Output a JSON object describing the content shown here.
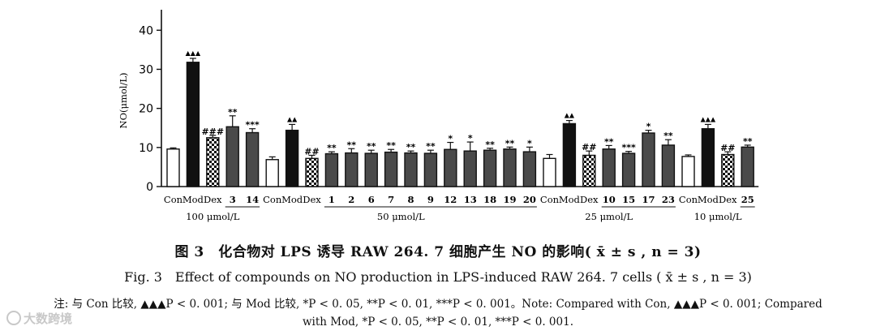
{
  "chart_data": {
    "type": "bar",
    "ylabel": "NO(μmol/L)",
    "ylim": [
      0,
      44
    ],
    "yticks": [
      0,
      10,
      20,
      30,
      40
    ],
    "grid": false,
    "groups": [
      {
        "label": "100 μmol/L",
        "bars": [
          {
            "category": "Con",
            "value": 9.6,
            "err": 0.3,
            "sig": "",
            "style": "white"
          },
          {
            "category": "Mod",
            "value": 31.8,
            "err": 1.0,
            "sig": "▲▲▲",
            "style": "black"
          },
          {
            "category": "Dex",
            "value": 12.5,
            "err": 0.6,
            "sig": "###",
            "style": "checker"
          },
          {
            "category": "3",
            "value": 15.3,
            "err": 2.8,
            "sig": "**",
            "style": "gray"
          },
          {
            "category": "14",
            "value": 13.8,
            "err": 1.0,
            "sig": "***",
            "style": "gray"
          }
        ]
      },
      {
        "label": "50 μmol/L",
        "bars": [
          {
            "category": "Con",
            "value": 6.9,
            "err": 0.7,
            "sig": "",
            "style": "white"
          },
          {
            "category": "Mod",
            "value": 14.4,
            "err": 1.5,
            "sig": "▲▲",
            "style": "black"
          },
          {
            "category": "Dex",
            "value": 7.2,
            "err": 0.8,
            "sig": "##",
            "style": "checker"
          },
          {
            "category": "1",
            "value": 8.4,
            "err": 0.5,
            "sig": "**",
            "style": "gray"
          },
          {
            "category": "2",
            "value": 8.6,
            "err": 1.1,
            "sig": "**",
            "style": "gray"
          },
          {
            "category": "6",
            "value": 8.5,
            "err": 0.8,
            "sig": "**",
            "style": "gray"
          },
          {
            "category": "7",
            "value": 8.8,
            "err": 0.7,
            "sig": "**",
            "style": "gray"
          },
          {
            "category": "8",
            "value": 8.6,
            "err": 0.5,
            "sig": "**",
            "style": "gray"
          },
          {
            "category": "9",
            "value": 8.5,
            "err": 0.8,
            "sig": "**",
            "style": "gray"
          },
          {
            "category": "12",
            "value": 9.5,
            "err": 1.8,
            "sig": "*",
            "style": "gray"
          },
          {
            "category": "13",
            "value": 9.1,
            "err": 2.3,
            "sig": "*",
            "style": "gray"
          },
          {
            "category": "18",
            "value": 9.3,
            "err": 0.5,
            "sig": "**",
            "style": "gray"
          },
          {
            "category": "19",
            "value": 9.6,
            "err": 0.5,
            "sig": "**",
            "style": "gray"
          },
          {
            "category": "20",
            "value": 8.9,
            "err": 1.2,
            "sig": "*",
            "style": "gray"
          }
        ]
      },
      {
        "label": "25 μmol/L",
        "bars": [
          {
            "category": "Con",
            "value": 7.2,
            "err": 1.0,
            "sig": "",
            "style": "white"
          },
          {
            "category": "Mod",
            "value": 16.1,
            "err": 0.8,
            "sig": "▲▲",
            "style": "black"
          },
          {
            "category": "Dex",
            "value": 8.0,
            "err": 1.1,
            "sig": "##",
            "style": "checker"
          },
          {
            "category": "10",
            "value": 9.6,
            "err": 0.9,
            "sig": "**",
            "style": "gray"
          },
          {
            "category": "15",
            "value": 8.5,
            "err": 0.5,
            "sig": "***",
            "style": "gray"
          },
          {
            "category": "17",
            "value": 13.7,
            "err": 0.7,
            "sig": "*",
            "style": "gray"
          },
          {
            "category": "23",
            "value": 10.6,
            "err": 1.4,
            "sig": "**",
            "style": "gray"
          }
        ]
      },
      {
        "label": "10 μmol/L",
        "bars": [
          {
            "category": "Con",
            "value": 7.7,
            "err": 0.4,
            "sig": "",
            "style": "white"
          },
          {
            "category": "Mod",
            "value": 14.8,
            "err": 1.1,
            "sig": "▲▲▲",
            "style": "black"
          },
          {
            "category": "Dex",
            "value": 8.2,
            "err": 0.7,
            "sig": "##",
            "style": "checker"
          },
          {
            "category": "25",
            "value": 10.1,
            "err": 0.5,
            "sig": "**",
            "style": "gray"
          }
        ]
      }
    ],
    "colors": {
      "black": "#111111",
      "gray": "#4a4a4a",
      "white": "#ffffff"
    }
  },
  "caption": {
    "zh": "图 3　化合物对 LPS 诱导 RAW 264. 7 细胞产生 NO 的影响( x̄ ± s , n = 3)",
    "en": "Fig. 3　Effect of compounds on NO production in LPS-induced RAW 264. 7 cells ( x̄ ± s , n = 3)",
    "note_line1": "注: 与 Con 比较, ▲▲▲P < 0. 001; 与 Mod 比较, *P < 0. 05, **P < 0. 01, ***P < 0. 001。Note: Compared with Con, ▲▲▲P < 0. 001; Compared",
    "note_line2": "with Mod, *P < 0. 05, **P < 0. 01, ***P < 0. 001."
  },
  "watermark": "大数跨境"
}
